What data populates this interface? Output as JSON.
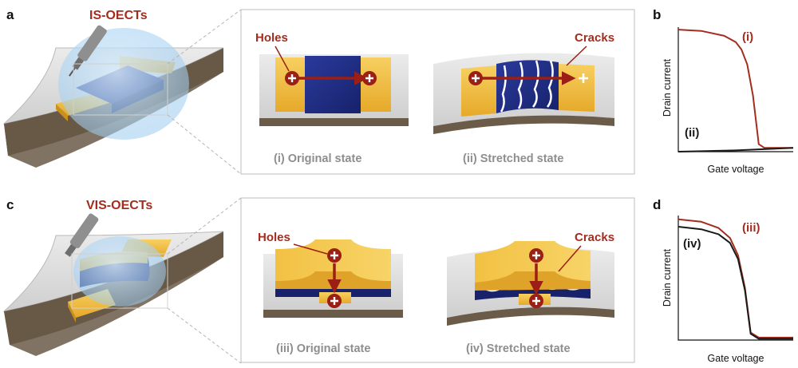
{
  "panel_letters": {
    "a": "a",
    "b": "b",
    "c": "c",
    "d": "d"
  },
  "top_row": {
    "device_title": "IS-OECTs",
    "holes_label": "Holes",
    "cracks_label": "Cracks",
    "state_original": "(i) Original state",
    "state_stretched": "(ii) Stretched state"
  },
  "bottom_row": {
    "device_title": "VIS-OECTs",
    "holes_label": "Holes",
    "cracks_label": "Cracks",
    "state_original": "(iii) Original state",
    "state_stretched": "(iv) Stretched state"
  },
  "chart_data": [
    {
      "type": "line",
      "panel": "b",
      "xlabel": "Gate voltage",
      "ylabel": "Drain current",
      "xlim": [
        0,
        1
      ],
      "ylim": [
        0,
        1
      ],
      "grid": false,
      "series": [
        {
          "name": "(i)",
          "color": "#a32d1f",
          "x": [
            0,
            0.2,
            0.4,
            0.5,
            0.55,
            0.6,
            0.65,
            0.7,
            0.75,
            1
          ],
          "y": [
            0.98,
            0.97,
            0.93,
            0.88,
            0.82,
            0.7,
            0.45,
            0.06,
            0.03,
            0.03
          ]
        },
        {
          "name": "(ii)",
          "color": "#1a1a1a",
          "x": [
            0,
            0.5,
            1
          ],
          "y": [
            0.0,
            0.01,
            0.03
          ]
        }
      ]
    },
    {
      "type": "line",
      "panel": "d",
      "xlabel": "Gate voltage",
      "ylabel": "Drain current",
      "xlim": [
        0,
        1
      ],
      "ylim": [
        0,
        1
      ],
      "grid": false,
      "series": [
        {
          "name": "(iii)",
          "color": "#a32d1f",
          "x": [
            0,
            0.2,
            0.35,
            0.45,
            0.52,
            0.58,
            0.63,
            0.7,
            1
          ],
          "y": [
            0.97,
            0.95,
            0.9,
            0.82,
            0.68,
            0.42,
            0.06,
            0.02,
            0.02
          ]
        },
        {
          "name": "(iv)",
          "color": "#1a1a1a",
          "x": [
            0,
            0.2,
            0.35,
            0.45,
            0.52,
            0.58,
            0.63,
            0.7,
            1
          ],
          "y": [
            0.91,
            0.89,
            0.85,
            0.78,
            0.65,
            0.4,
            0.05,
            0.01,
            0.01
          ]
        }
      ]
    }
  ]
}
